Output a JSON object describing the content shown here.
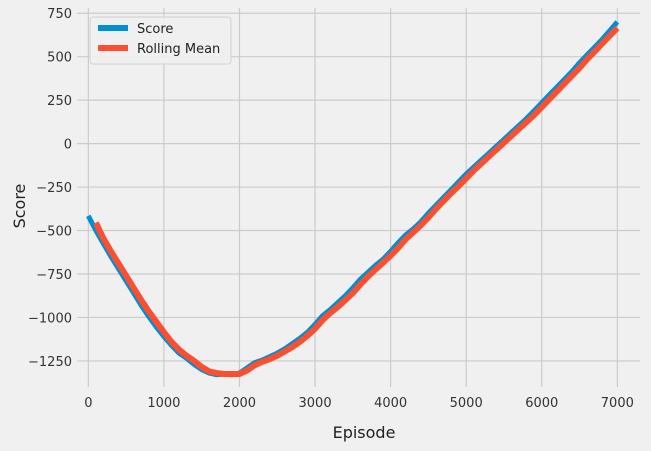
{
  "chart_data": {
    "type": "line",
    "xlabel": "Episode",
    "ylabel": "Score",
    "xlim": [
      -150,
      7300
    ],
    "ylim": [
      -1400,
      780
    ],
    "x_ticks": [
      0,
      1000,
      2000,
      3000,
      4000,
      5000,
      6000,
      7000
    ],
    "y_ticks": [
      -1250,
      -1000,
      -750,
      -500,
      -250,
      0,
      250,
      500,
      750
    ],
    "x_tick_labels": [
      "0",
      "1000",
      "2000",
      "3000",
      "4000",
      "5000",
      "6000",
      "7000"
    ],
    "y_tick_labels": [
      "−1250",
      "−1000",
      "−750",
      "−500",
      "−250",
      "0",
      "250",
      "500",
      "750"
    ],
    "grid": true,
    "legend_position": "top-left",
    "series": [
      {
        "name": "Score",
        "color": "#008fd5",
        "x": [
          0,
          100,
          200,
          300,
          400,
          500,
          600,
          700,
          800,
          900,
          1000,
          1100,
          1200,
          1300,
          1400,
          1500,
          1600,
          1700,
          1800,
          1900,
          2000,
          2100,
          2200,
          2300,
          2400,
          2500,
          2600,
          2700,
          2800,
          2900,
          3000,
          3100,
          3200,
          3300,
          3400,
          3500,
          3600,
          3700,
          3800,
          3900,
          4000,
          4100,
          4200,
          4300,
          4400,
          4500,
          4600,
          4700,
          4800,
          4900,
          5000,
          5100,
          5200,
          5300,
          5400,
          5500,
          5600,
          5700,
          5800,
          5900,
          6000,
          6100,
          6200,
          6300,
          6400,
          6500,
          6600,
          6700,
          6800,
          6900,
          7000
        ],
        "y": [
          -415,
          -500,
          -575,
          -650,
          -720,
          -790,
          -860,
          -930,
          -995,
          -1055,
          -1110,
          -1160,
          -1205,
          -1235,
          -1270,
          -1300,
          -1320,
          -1330,
          -1325,
          -1330,
          -1320,
          -1290,
          -1260,
          -1245,
          -1225,
          -1205,
          -1180,
          -1150,
          -1120,
          -1085,
          -1040,
          -990,
          -955,
          -915,
          -875,
          -830,
          -780,
          -740,
          -700,
          -665,
          -620,
          -570,
          -525,
          -490,
          -450,
          -400,
          -355,
          -310,
          -265,
          -220,
          -175,
          -135,
          -95,
          -55,
          -15,
          25,
          65,
          105,
          145,
          190,
          235,
          280,
          325,
          370,
          415,
          465,
          510,
          555,
          600,
          650,
          700
        ]
      },
      {
        "name": "Rolling Mean",
        "color": "#fc4f30",
        "x": [
          100,
          200,
          300,
          400,
          500,
          600,
          700,
          800,
          900,
          1000,
          1100,
          1200,
          1300,
          1400,
          1500,
          1600,
          1700,
          1800,
          1900,
          2000,
          2100,
          2200,
          2300,
          2400,
          2500,
          2600,
          2700,
          2800,
          2900,
          3000,
          3100,
          3200,
          3300,
          3400,
          3500,
          3600,
          3700,
          3800,
          3900,
          4000,
          4100,
          4200,
          4300,
          4400,
          4500,
          4600,
          4700,
          4800,
          4900,
          5000,
          5100,
          5200,
          5300,
          5400,
          5500,
          5600,
          5700,
          5800,
          5900,
          6000,
          6100,
          6200,
          6300,
          6400,
          6500,
          6600,
          6700,
          6800,
          6900,
          7000
        ],
        "y": [
          -455,
          -545,
          -620,
          -690,
          -760,
          -830,
          -900,
          -965,
          -1025,
          -1085,
          -1140,
          -1185,
          -1220,
          -1250,
          -1285,
          -1310,
          -1320,
          -1325,
          -1325,
          -1325,
          -1305,
          -1275,
          -1255,
          -1240,
          -1220,
          -1195,
          -1170,
          -1140,
          -1105,
          -1065,
          -1015,
          -975,
          -940,
          -900,
          -860,
          -810,
          -765,
          -725,
          -685,
          -645,
          -600,
          -550,
          -510,
          -470,
          -425,
          -375,
          -330,
          -285,
          -245,
          -200,
          -155,
          -115,
          -75,
          -35,
          5,
          45,
          85,
          125,
          165,
          210,
          255,
          300,
          345,
          390,
          435,
          485,
          530,
          575,
          620,
          665
        ]
      }
    ]
  }
}
